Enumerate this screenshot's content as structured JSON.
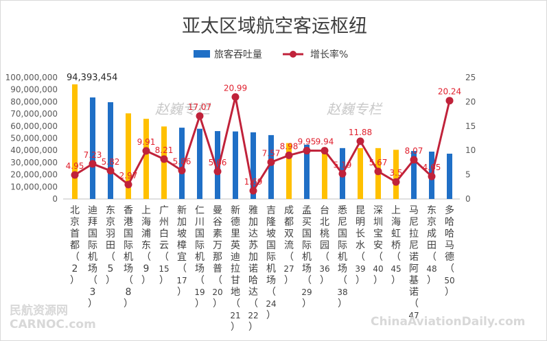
{
  "chart_data": {
    "type": "bar",
    "title": "亚太区域航空客运枢纽",
    "categories": [
      "北京首都(2)",
      "迪拜国际机场(3)",
      "东京羽田(5)",
      "香港国际机场(8)",
      "上海浦东(9)",
      "广州白云(15)",
      "新加坡樟宜(17)",
      "仁川国际机场(19)",
      "曼谷素万那普(20)",
      "新德里英迪拉甘地(21)",
      "雅加达苏加诺哈达(22)",
      "吉隆坡国际机场(24)",
      "成都双流(27)",
      "孟买国际机场(29)",
      "台北桃园(36)",
      "悉尼国际机场(38)",
      "昆明长水(39)",
      "深圳宝安(40)",
      "上海虹桥(45)",
      "马尼拉尼诺阿基诺(47)",
      "东京成田(48)",
      "多哈哈马德(50)"
    ],
    "category_labels": [
      [
        "北",
        "京",
        "首",
        "都",
        "（",
        "2",
        "）"
      ],
      [
        "迪",
        "拜",
        "国",
        "际",
        "机",
        "场",
        "（",
        "3",
        "）"
      ],
      [
        "东",
        "京",
        "羽",
        "田",
        "（",
        "5",
        "）"
      ],
      [
        "香",
        "港",
        "国",
        "际",
        "机",
        "场",
        "（",
        "8",
        "）"
      ],
      [
        "上",
        "海",
        "浦",
        "东",
        "（",
        "9",
        "）"
      ],
      [
        "广",
        "州",
        "白",
        "云",
        "（",
        "15",
        "）"
      ],
      [
        "新",
        "加",
        "坡",
        "樟",
        "宜",
        "（",
        "17",
        "）"
      ],
      [
        "仁",
        "川",
        "国",
        "际",
        "机",
        "场",
        "（",
        "19",
        "）"
      ],
      [
        "曼",
        "谷",
        "素",
        "万",
        "那",
        "普",
        "（",
        "20",
        "）"
      ],
      [
        "新",
        "德",
        "里",
        "英",
        "迪",
        "拉",
        "甘",
        "地",
        "（",
        "21",
        "）"
      ],
      [
        "雅",
        "加",
        "达",
        "苏",
        "加",
        "诺",
        "哈",
        "达",
        "（",
        "22",
        "）"
      ],
      [
        "吉",
        "隆",
        "坡",
        "国",
        "际",
        "机",
        "场",
        "（",
        "24",
        "）"
      ],
      [
        "成",
        "都",
        "双",
        "流",
        "（",
        "27",
        "）"
      ],
      [
        "孟",
        "买",
        "国",
        "际",
        "机",
        "场",
        "（",
        "29",
        "）"
      ],
      [
        "台",
        "北",
        "桃",
        "园",
        "（",
        "36",
        "）"
      ],
      [
        "悉",
        "尼",
        "国",
        "际",
        "机",
        "场",
        "（",
        "38",
        "）"
      ],
      [
        "昆",
        "明",
        "长",
        "水",
        "（",
        "39",
        "）"
      ],
      [
        "深",
        "圳",
        "宝",
        "安",
        "（",
        "40",
        "）"
      ],
      [
        "上",
        "海",
        "虹",
        "桥",
        "（",
        "45",
        "）"
      ],
      [
        "马",
        "尼",
        "拉",
        "尼",
        "诺",
        "阿",
        "基",
        "诺",
        "（",
        "47"
      ],
      [
        "东",
        "京",
        "成",
        "田",
        "（",
        "48",
        "）"
      ],
      [
        "多",
        "哈",
        "哈",
        "马",
        "德",
        "（",
        "50",
        "）"
      ]
    ],
    "series": [
      {
        "name": "旅客吞吐量",
        "type": "bar",
        "axis": "left",
        "values": [
          94393454,
          83600000,
          79700000,
          70500000,
          66000000,
          59700000,
          58700000,
          57800000,
          55900000,
          55600000,
          54900000,
          52600000,
          46000000,
          44700000,
          42300000,
          41900000,
          41900000,
          41900000,
          40500000,
          39500000,
          39000000,
          37300000
        ],
        "value_labels": [
          "94,393,454",
          "",
          "",
          "",
          "",
          "",
          "",
          "",
          "",
          "",
          "",
          "",
          "",
          "",
          "",
          "",
          "",
          "",
          "",
          "",
          "",
          ""
        ],
        "colors": [
          "#ffc000",
          "#1f6fc6",
          "#1f6fc6",
          "#ffc000",
          "#ffc000",
          "#ffc000",
          "#1f6fc6",
          "#1f6fc6",
          "#1f6fc6",
          "#1f6fc6",
          "#1f6fc6",
          "#1f6fc6",
          "#ffc000",
          "#1f6fc6",
          "#ffc000",
          "#1f6fc6",
          "#ffc000",
          "#ffc000",
          "#ffc000",
          "#1f6fc6",
          "#1f6fc6",
          "#1f6fc6"
        ]
      },
      {
        "name": "增长率%",
        "type": "line",
        "axis": "right",
        "values": [
          4.95,
          7.23,
          5.82,
          2.97,
          9.91,
          8.21,
          5.86,
          17.07,
          5.66,
          20.99,
          1.69,
          7.57,
          8.98,
          9.95,
          9.94,
          5.19,
          11.88,
          5.67,
          3.5,
          8.07,
          4.65,
          20.24
        ],
        "value_labels": [
          "4.95",
          "7.23",
          "5.82",
          "2.97",
          "9.91",
          "8.21",
          "5.86",
          "17.07",
          "5.66",
          "20.99",
          "1.69",
          "7.57",
          "8.98",
          "9.95",
          "9.94",
          "5.19",
          "11.88",
          "5.67",
          "3.5",
          "8.07",
          "4.65",
          "20.24"
        ],
        "color": "#c0223a"
      }
    ],
    "y_left": {
      "ticks": [
        0,
        10000000,
        20000000,
        30000000,
        40000000,
        50000000,
        60000000,
        70000000,
        80000000,
        90000000,
        100000000
      ],
      "tick_labels": [
        "0",
        "10,000,000",
        "20,000,000",
        "30,000,000",
        "40,000,000",
        "50,000,000",
        "60,000,000",
        "70,000,000",
        "80,000,000",
        "90,000,000",
        "100,000,000"
      ],
      "lim": [
        0,
        100000000
      ]
    },
    "y_right": {
      "ticks": [
        0,
        5,
        10,
        15,
        20,
        25
      ],
      "tick_labels": [
        "0",
        "5",
        "10",
        "15",
        "20",
        "25"
      ],
      "lim": [
        0,
        25
      ]
    },
    "legend": {
      "placement": "top-center",
      "items": [
        "旅客吞吐量",
        "增长率%"
      ]
    },
    "grid": false
  },
  "watermarks": {
    "author_1": "赵巍专栏",
    "author_2": "赵巍专栏",
    "corner_left_top": "民航资源网",
    "corner_left_bottom": "CARNOC.com",
    "corner_right": "ChinaAviationDaily.com"
  }
}
